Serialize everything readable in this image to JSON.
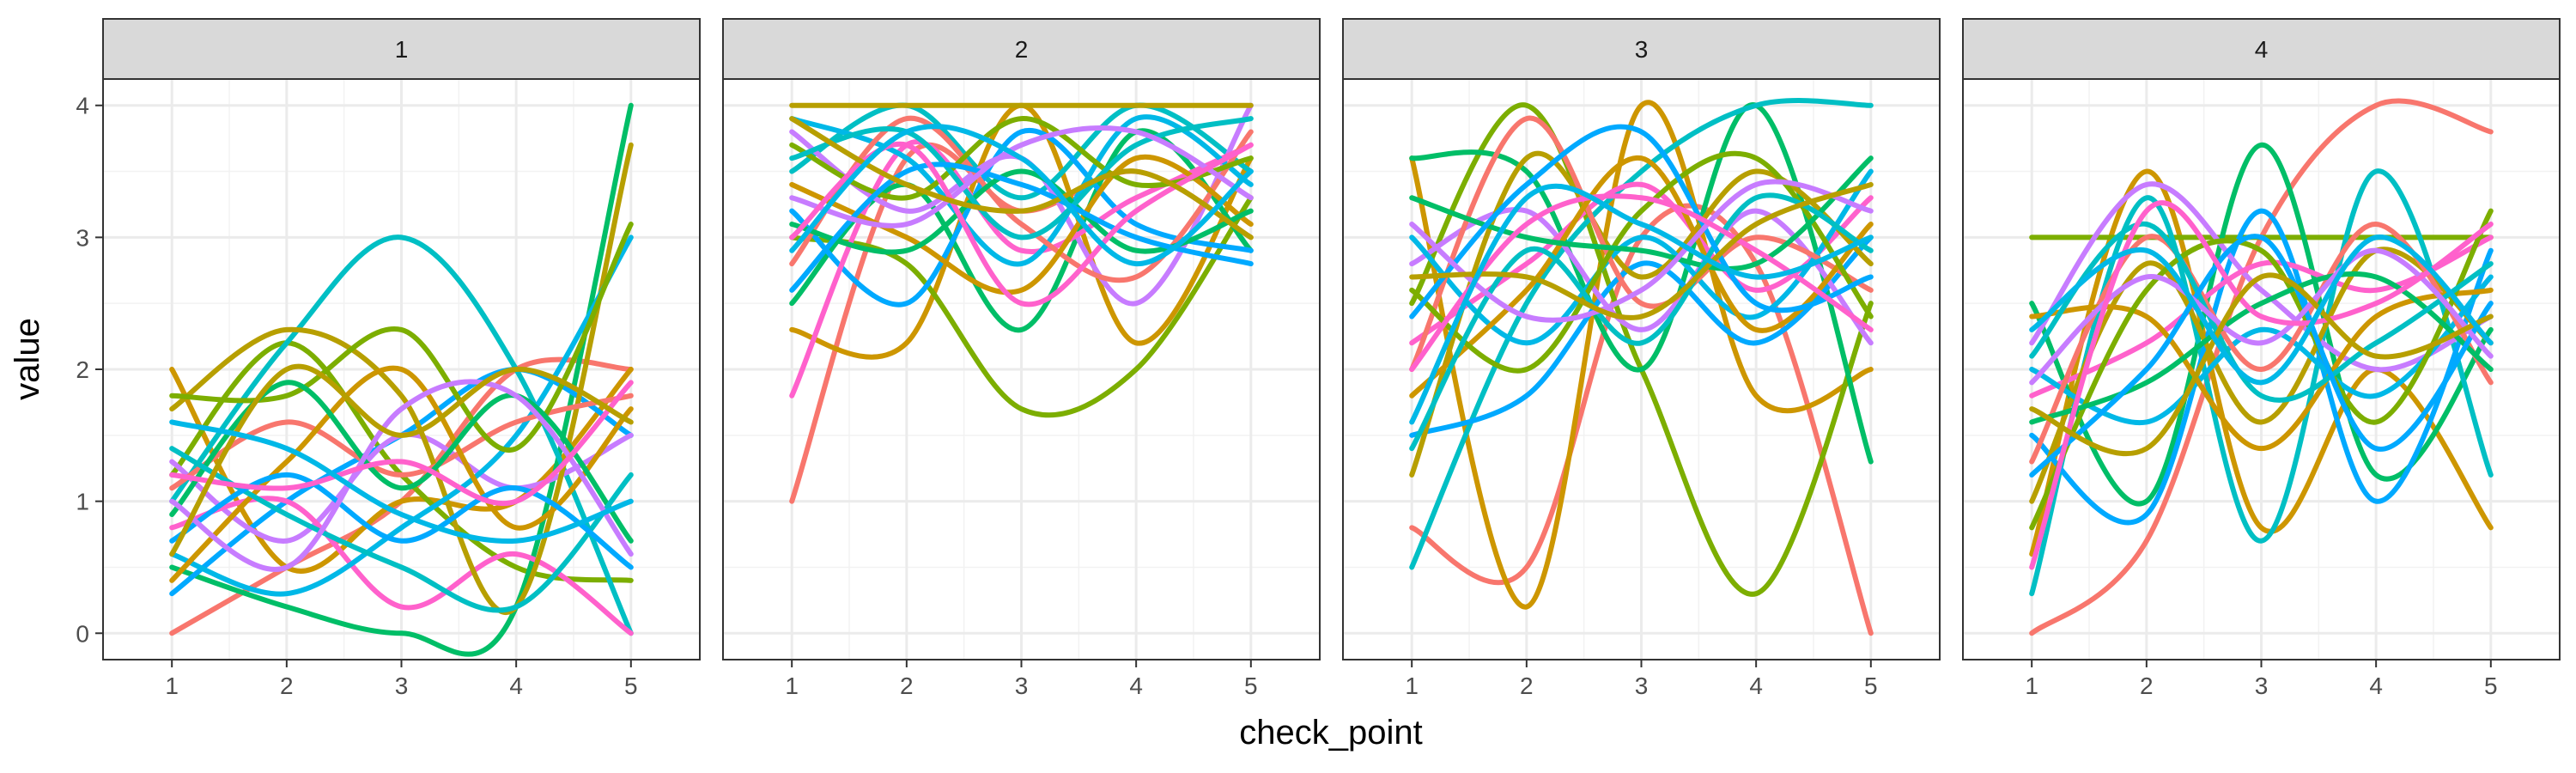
{
  "chart_data": {
    "type": "line",
    "facet_by": "panel",
    "panels": [
      "1",
      "2",
      "3",
      "4"
    ],
    "xlabel": "check_point",
    "ylabel": "value",
    "x_ticks": [
      1,
      2,
      3,
      4,
      5
    ],
    "y_ticks": [
      0,
      1,
      2,
      3,
      4
    ],
    "xlim": [
      0.4,
      5.6
    ],
    "ylim": [
      -0.2,
      4.2
    ],
    "grid": true,
    "curve": "smooth-spline",
    "colors": [
      "#F8766D",
      "#CD9600",
      "#7CAE00",
      "#00BE67",
      "#00BFC4",
      "#00A9FF",
      "#C77CFF",
      "#FF61CC",
      "#B79F00",
      "#00B8E7"
    ],
    "series_by_panel": [
      [
        [
          0,
          0.5,
          1,
          2,
          2
        ],
        [
          2,
          0.5,
          1,
          1,
          2
        ],
        [
          1.2,
          2.2,
          1.2,
          0.5,
          0.4
        ],
        [
          0.5,
          0.2,
          0,
          0.2,
          4
        ],
        [
          1,
          2.2,
          3,
          2,
          0
        ],
        [
          0.3,
          1,
          1.5,
          2,
          1.5
        ],
        [
          1.3,
          0.7,
          1.5,
          1.1,
          1.5
        ],
        [
          0.8,
          1,
          0.2,
          0.6,
          0
        ],
        [
          1.7,
          2.3,
          1.8,
          0.2,
          3.7
        ],
        [
          0.6,
          0.3,
          0.8,
          1.5,
          3
        ],
        [
          1.1,
          1.6,
          1.2,
          1.6,
          1.8
        ],
        [
          0.4,
          1.3,
          2,
          0.8,
          1.7
        ],
        [
          1.8,
          1.8,
          2.3,
          1.4,
          3.1
        ],
        [
          0.9,
          1.9,
          1.1,
          1.8,
          0.7
        ],
        [
          1.4,
          0.9,
          0.5,
          0.2,
          1.2
        ],
        [
          0.7,
          1.2,
          0.7,
          1.1,
          0.5
        ],
        [
          1.0,
          0.5,
          1.7,
          1.8,
          0.6
        ],
        [
          1.2,
          1.1,
          1.3,
          1.0,
          1.9
        ],
        [
          0.6,
          2.0,
          1.5,
          2.0,
          1.6
        ],
        [
          1.6,
          1.4,
          0.9,
          0.7,
          1.0
        ]
      ],
      [
        [
          1,
          3.6,
          3.2,
          3.5,
          3
        ],
        [
          2.3,
          2.2,
          4,
          2.2,
          3.6
        ],
        [
          3,
          2.8,
          1.7,
          2,
          3.3
        ],
        [
          2.5,
          3.4,
          2.3,
          3.8,
          2.9
        ],
        [
          3.5,
          4,
          3.3,
          4,
          3.5
        ],
        [
          3.2,
          2.5,
          3.8,
          3.1,
          2.9
        ],
        [
          3.8,
          3.2,
          3.6,
          2.5,
          4
        ],
        [
          1.8,
          3.7,
          2.9,
          3.3,
          3.7
        ],
        [
          4,
          4,
          4,
          4,
          4
        ],
        [
          3.9,
          3.6,
          2.8,
          3.9,
          3.4
        ],
        [
          2.8,
          3.9,
          3.1,
          2.7,
          3.8
        ],
        [
          3.4,
          3.0,
          2.6,
          3.6,
          3.1
        ],
        [
          3.7,
          3.3,
          3.9,
          3.4,
          3.6
        ],
        [
          3.1,
          2.9,
          3.5,
          2.9,
          3.2
        ],
        [
          3.6,
          3.8,
          3.0,
          3.7,
          3.9
        ],
        [
          2.6,
          3.5,
          3.4,
          3.0,
          2.8
        ],
        [
          3.3,
          3.1,
          3.7,
          3.8,
          3.3
        ],
        [
          3.0,
          3.7,
          2.5,
          3.2,
          3.7
        ],
        [
          3.9,
          3.4,
          3.2,
          3.5,
          3.0
        ],
        [
          2.9,
          3.8,
          3.6,
          2.8,
          3.5
        ]
      ],
      [
        [
          0.8,
          0.5,
          3,
          2.8,
          0
        ],
        [
          3.6,
          0.2,
          4,
          1.8,
          2
        ],
        [
          2.5,
          4,
          2,
          0.3,
          2.5
        ],
        [
          3.6,
          3.5,
          2,
          4,
          1.3
        ],
        [
          0.5,
          2.5,
          3.5,
          4,
          4
        ],
        [
          1.5,
          1.8,
          2.8,
          2.2,
          3
        ],
        [
          2.8,
          3.2,
          2.3,
          3.2,
          2.2
        ],
        [
          2.2,
          2.8,
          3.4,
          2.6,
          3.3
        ],
        [
          1.2,
          3.6,
          2.7,
          3.5,
          2.8
        ],
        [
          3.0,
          2.2,
          3.0,
          2.4,
          3.5
        ],
        [
          2.0,
          3.9,
          2.5,
          3.0,
          2.6
        ],
        [
          1.8,
          2.6,
          3.6,
          2.3,
          3.1
        ],
        [
          2.6,
          2.0,
          3.2,
          3.6,
          2.4
        ],
        [
          3.3,
          3.0,
          2.9,
          2.8,
          3.6
        ],
        [
          1.4,
          2.9,
          2.2,
          3.3,
          2.9
        ],
        [
          2.4,
          3.4,
          3.8,
          2.5,
          2.7
        ],
        [
          3.1,
          2.4,
          2.6,
          3.4,
          3.2
        ],
        [
          2.0,
          3.1,
          3.3,
          2.9,
          2.3
        ],
        [
          2.7,
          2.7,
          2.4,
          3.1,
          3.4
        ],
        [
          1.6,
          3.3,
          3.1,
          2.7,
          3.0
        ]
      ],
      [
        [
          0,
          0.7,
          3,
          4,
          3.8
        ],
        [
          0.6,
          3.5,
          0.8,
          2,
          0.8
        ],
        [
          3,
          3,
          3,
          3,
          3
        ],
        [
          2.5,
          1,
          3.7,
          1.2,
          2.3
        ],
        [
          0.3,
          3.3,
          0.7,
          3.5,
          1.2
        ],
        [
          1.5,
          0.9,
          3.2,
          1,
          2.9
        ],
        [
          2.2,
          3.4,
          2.6,
          2.0,
          2.4
        ],
        [
          1.8,
          2.2,
          2.8,
          2.6,
          3.0
        ],
        [
          1.0,
          2.8,
          1.6,
          2.9,
          2.2
        ],
        [
          2.0,
          1.6,
          2.3,
          1.8,
          2.7
        ],
        [
          1.3,
          3.0,
          2.0,
          3.1,
          1.9
        ],
        [
          2.4,
          2.4,
          1.4,
          2.4,
          2.6
        ],
        [
          0.8,
          2.6,
          2.9,
          1.6,
          3.2
        ],
        [
          1.6,
          1.9,
          2.5,
          2.7,
          2.0
        ],
        [
          2.1,
          3.1,
          1.8,
          2.2,
          2.8
        ],
        [
          1.2,
          2.0,
          3.0,
          1.4,
          2.5
        ],
        [
          1.9,
          2.7,
          2.2,
          2.9,
          2.1
        ],
        [
          0.5,
          3.2,
          2.4,
          2.5,
          3.1
        ],
        [
          1.7,
          1.4,
          2.7,
          2.1,
          2.4
        ],
        [
          2.3,
          2.9,
          1.9,
          3.0,
          2.2
        ]
      ]
    ]
  }
}
